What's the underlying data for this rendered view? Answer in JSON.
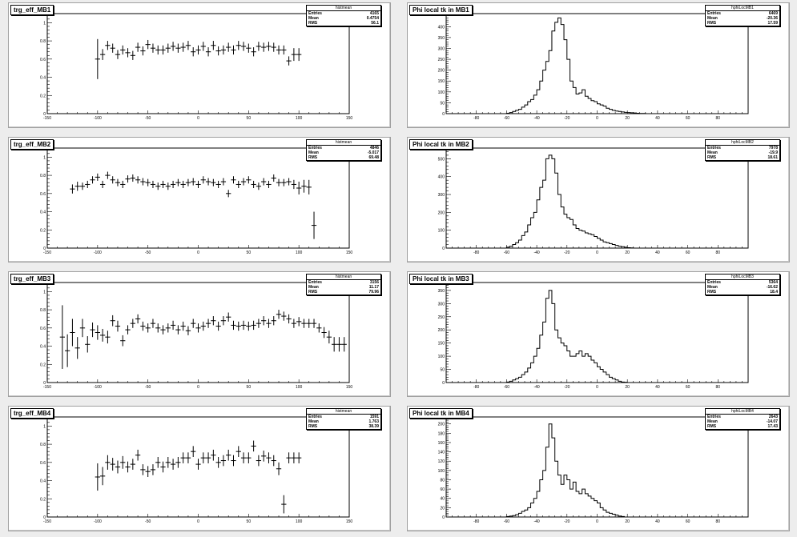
{
  "chart_data": [
    {
      "type": "scatter",
      "title": "trg_eff_MB1",
      "stats": {
        "name": "histmean",
        "entries": "4165",
        "mean": "0.4754",
        "rms": "56.1"
      },
      "xlim": [
        -150,
        150
      ],
      "ylim": [
        0,
        1.1
      ],
      "xticks": [
        -150,
        -100,
        -50,
        0,
        50,
        100,
        150
      ],
      "yticks": [
        0,
        0.2,
        0.4,
        0.6,
        0.8,
        1
      ],
      "xwidth": 5,
      "x": [
        -100,
        -95,
        -90,
        -85,
        -80,
        -75,
        -70,
        -65,
        -60,
        -55,
        -50,
        -45,
        -40,
        -35,
        -30,
        -25,
        -20,
        -15,
        -10,
        -5,
        0,
        5,
        10,
        15,
        20,
        25,
        30,
        35,
        40,
        45,
        50,
        55,
        60,
        65,
        70,
        75,
        80,
        85,
        90,
        95,
        100
      ],
      "y": [
        0.6,
        0.65,
        0.75,
        0.72,
        0.65,
        0.7,
        0.67,
        0.64,
        0.73,
        0.69,
        0.76,
        0.72,
        0.7,
        0.7,
        0.72,
        0.74,
        0.72,
        0.73,
        0.75,
        0.68,
        0.7,
        0.74,
        0.68,
        0.75,
        0.69,
        0.7,
        0.73,
        0.7,
        0.75,
        0.74,
        0.72,
        0.68,
        0.74,
        0.73,
        0.74,
        0.73,
        0.7,
        0.7,
        0.58,
        0.65,
        0.65
      ],
      "yerr": [
        0.22,
        0.06,
        0.05,
        0.05,
        0.05,
        0.05,
        0.05,
        0.05,
        0.05,
        0.05,
        0.05,
        0.05,
        0.05,
        0.05,
        0.05,
        0.05,
        0.05,
        0.05,
        0.05,
        0.05,
        0.05,
        0.05,
        0.05,
        0.05,
        0.05,
        0.05,
        0.05,
        0.05,
        0.05,
        0.05,
        0.05,
        0.05,
        0.05,
        0.05,
        0.05,
        0.05,
        0.05,
        0.05,
        0.05,
        0.07,
        0.07
      ]
    },
    {
      "type": "histogram",
      "title": "Phi local tk in MB1",
      "stats": {
        "name": "hphiLocMB1",
        "entries": "6469",
        "mean": "-20.36",
        "rms": "17.59"
      },
      "xlim": [
        -100,
        100
      ],
      "ylim": [
        0,
        460
      ],
      "xticks": [
        -80,
        -60,
        -40,
        -20,
        0,
        20,
        40,
        60,
        80
      ],
      "yticks": [
        0,
        50,
        100,
        150,
        200,
        250,
        300,
        350,
        400
      ],
      "bin_start": -60,
      "bin_width": 2,
      "values": [
        2,
        5,
        10,
        15,
        20,
        30,
        40,
        55,
        65,
        85,
        110,
        150,
        200,
        240,
        290,
        380,
        420,
        440,
        410,
        340,
        250,
        150,
        120,
        90,
        95,
        110,
        80,
        70,
        60,
        55,
        45,
        40,
        35,
        25,
        20,
        15,
        12,
        10,
        8,
        6,
        5,
        4,
        3,
        2,
        1,
        1,
        0,
        0,
        0,
        0
      ]
    },
    {
      "type": "scatter",
      "title": "trg_eff_MB2",
      "stats": {
        "name": "histmean",
        "entries": "4846",
        "mean": "-5.017",
        "rms": "69.48"
      },
      "xlim": [
        -150,
        150
      ],
      "ylim": [
        0,
        1.1
      ],
      "xticks": [
        -150,
        -100,
        -50,
        0,
        50,
        100,
        150
      ],
      "yticks": [
        0,
        0.2,
        0.4,
        0.6,
        0.8,
        1
      ],
      "xwidth": 5,
      "x": [
        -125,
        -120,
        -115,
        -110,
        -105,
        -100,
        -95,
        -90,
        -85,
        -80,
        -75,
        -70,
        -65,
        -60,
        -55,
        -50,
        -45,
        -40,
        -35,
        -30,
        -25,
        -20,
        -15,
        -10,
        -5,
        0,
        5,
        10,
        15,
        20,
        25,
        30,
        35,
        40,
        45,
        50,
        55,
        60,
        65,
        70,
        75,
        80,
        85,
        90,
        95,
        100,
        105,
        110,
        115
      ],
      "y": [
        0.65,
        0.68,
        0.68,
        0.7,
        0.75,
        0.78,
        0.7,
        0.8,
        0.75,
        0.72,
        0.7,
        0.76,
        0.77,
        0.75,
        0.73,
        0.72,
        0.7,
        0.68,
        0.7,
        0.68,
        0.7,
        0.72,
        0.7,
        0.72,
        0.73,
        0.7,
        0.75,
        0.73,
        0.72,
        0.7,
        0.73,
        0.6,
        0.75,
        0.7,
        0.73,
        0.75,
        0.7,
        0.68,
        0.73,
        0.7,
        0.77,
        0.72,
        0.72,
        0.73,
        0.7,
        0.66,
        0.68,
        0.67,
        0.25
      ],
      "yerr": [
        0.05,
        0.05,
        0.04,
        0.04,
        0.04,
        0.04,
        0.04,
        0.04,
        0.04,
        0.04,
        0.04,
        0.04,
        0.04,
        0.04,
        0.04,
        0.04,
        0.04,
        0.04,
        0.04,
        0.04,
        0.04,
        0.04,
        0.04,
        0.04,
        0.04,
        0.04,
        0.04,
        0.04,
        0.04,
        0.04,
        0.04,
        0.04,
        0.04,
        0.04,
        0.04,
        0.04,
        0.04,
        0.04,
        0.04,
        0.04,
        0.04,
        0.04,
        0.04,
        0.04,
        0.05,
        0.07,
        0.07,
        0.08,
        0.15
      ]
    },
    {
      "type": "histogram",
      "title": "Phi local tk in MB2",
      "stats": {
        "name": "hphiLocMB2",
        "entries": "7978",
        "mean": "-19.9",
        "rms": "18.61"
      },
      "xlim": [
        -100,
        100
      ],
      "ylim": [
        0,
        560
      ],
      "xticks": [
        -80,
        -60,
        -40,
        -20,
        0,
        20,
        40,
        60,
        80
      ],
      "yticks": [
        0,
        100,
        200,
        300,
        400,
        500
      ],
      "bin_start": -60,
      "bin_width": 2,
      "values": [
        5,
        10,
        20,
        30,
        45,
        70,
        90,
        130,
        170,
        200,
        270,
        340,
        380,
        500,
        520,
        500,
        420,
        300,
        230,
        190,
        170,
        160,
        130,
        110,
        100,
        95,
        85,
        80,
        75,
        65,
        55,
        45,
        35,
        30,
        25,
        20,
        15,
        10,
        8,
        5,
        2,
        1,
        0,
        0,
        0,
        0,
        0,
        0,
        0,
        0
      ]
    },
    {
      "type": "scatter",
      "title": "trg_eff_MB3",
      "stats": {
        "name": "histmean",
        "entries": "3156",
        "mean": "11.17",
        "rms": "79.96"
      },
      "xlim": [
        -150,
        150
      ],
      "ylim": [
        0,
        1.1
      ],
      "xticks": [
        -150,
        -100,
        -50,
        0,
        50,
        100,
        150
      ],
      "yticks": [
        0,
        0.2,
        0.4,
        0.6,
        0.8,
        1
      ],
      "xwidth": 5,
      "x": [
        -135,
        -130,
        -125,
        -120,
        -115,
        -110,
        -105,
        -100,
        -95,
        -90,
        -85,
        -80,
        -75,
        -70,
        -65,
        -60,
        -55,
        -50,
        -45,
        -40,
        -35,
        -30,
        -25,
        -20,
        -15,
        -10,
        -5,
        0,
        5,
        10,
        15,
        20,
        25,
        30,
        35,
        40,
        45,
        50,
        55,
        60,
        65,
        70,
        75,
        80,
        85,
        90,
        95,
        100,
        105,
        110,
        115,
        120,
        125,
        130,
        135,
        140,
        145
      ],
      "y": [
        0.5,
        0.35,
        0.55,
        0.38,
        0.6,
        0.42,
        0.58,
        0.55,
        0.52,
        0.5,
        0.68,
        0.62,
        0.46,
        0.58,
        0.65,
        0.7,
        0.62,
        0.6,
        0.65,
        0.6,
        0.58,
        0.6,
        0.63,
        0.58,
        0.62,
        0.57,
        0.65,
        0.6,
        0.62,
        0.65,
        0.68,
        0.62,
        0.68,
        0.72,
        0.63,
        0.62,
        0.63,
        0.62,
        0.63,
        0.65,
        0.68,
        0.65,
        0.68,
        0.75,
        0.73,
        0.7,
        0.65,
        0.67,
        0.65,
        0.65,
        0.65,
        0.6,
        0.55,
        0.5,
        0.42,
        0.42,
        0.42
      ],
      "yerr": [
        0.35,
        0.18,
        0.15,
        0.12,
        0.1,
        0.09,
        0.08,
        0.08,
        0.07,
        0.07,
        0.06,
        0.06,
        0.06,
        0.05,
        0.05,
        0.05,
        0.05,
        0.05,
        0.05,
        0.05,
        0.05,
        0.05,
        0.05,
        0.05,
        0.05,
        0.05,
        0.05,
        0.05,
        0.05,
        0.05,
        0.05,
        0.05,
        0.05,
        0.05,
        0.05,
        0.05,
        0.05,
        0.05,
        0.05,
        0.05,
        0.05,
        0.05,
        0.05,
        0.05,
        0.05,
        0.05,
        0.05,
        0.05,
        0.05,
        0.05,
        0.05,
        0.05,
        0.06,
        0.07,
        0.08,
        0.08,
        0.08
      ]
    },
    {
      "type": "histogram",
      "title": "Phi local tk in MB3",
      "stats": {
        "name": "hphiLocMB3",
        "entries": "5364",
        "mean": "-16.62",
        "rms": "18.4"
      },
      "xlim": [
        -100,
        100
      ],
      "ylim": [
        0,
        380
      ],
      "xticks": [
        -80,
        -60,
        -40,
        -20,
        0,
        20,
        40,
        60,
        80
      ],
      "yticks": [
        0,
        50,
        100,
        150,
        200,
        250,
        300,
        350
      ],
      "bin_start": -60,
      "bin_width": 2,
      "values": [
        2,
        5,
        10,
        15,
        20,
        30,
        40,
        55,
        75,
        100,
        130,
        180,
        230,
        320,
        350,
        300,
        200,
        170,
        150,
        140,
        120,
        100,
        100,
        110,
        120,
        100,
        110,
        100,
        85,
        75,
        60,
        50,
        40,
        30,
        20,
        15,
        10,
        5,
        2,
        1,
        0,
        0,
        0,
        0,
        0,
        0,
        0,
        0,
        0,
        0
      ]
    },
    {
      "type": "scatter",
      "title": "trg_eff_MB4",
      "stats": {
        "name": "histmean",
        "entries": "1591",
        "mean": "1.763",
        "rms": "38.39"
      },
      "xlim": [
        -150,
        150
      ],
      "ylim": [
        0,
        1.1
      ],
      "xticks": [
        -150,
        -100,
        -50,
        0,
        50,
        100,
        150
      ],
      "yticks": [
        0,
        0.2,
        0.4,
        0.6,
        0.8,
        1
      ],
      "xwidth": 5,
      "x": [
        -100,
        -95,
        -90,
        -85,
        -80,
        -75,
        -70,
        -65,
        -60,
        -55,
        -50,
        -45,
        -40,
        -35,
        -30,
        -25,
        -20,
        -15,
        -10,
        -5,
        0,
        5,
        10,
        15,
        20,
        25,
        30,
        35,
        40,
        45,
        50,
        55,
        60,
        65,
        70,
        75,
        80,
        85,
        90,
        95,
        100
      ],
      "y": [
        0.44,
        0.45,
        0.6,
        0.58,
        0.55,
        0.6,
        0.55,
        0.58,
        0.68,
        0.52,
        0.5,
        0.52,
        0.6,
        0.55,
        0.6,
        0.58,
        0.6,
        0.65,
        0.65,
        0.72,
        0.58,
        0.65,
        0.65,
        0.68,
        0.6,
        0.62,
        0.68,
        0.62,
        0.72,
        0.65,
        0.65,
        0.78,
        0.62,
        0.67,
        0.65,
        0.62,
        0.53,
        0.14,
        0.65,
        0.65,
        0.65
      ],
      "yerr": [
        0.15,
        0.1,
        0.08,
        0.07,
        0.07,
        0.07,
        0.06,
        0.06,
        0.06,
        0.06,
        0.06,
        0.06,
        0.06,
        0.06,
        0.06,
        0.06,
        0.06,
        0.06,
        0.06,
        0.06,
        0.06,
        0.06,
        0.06,
        0.06,
        0.06,
        0.06,
        0.06,
        0.06,
        0.06,
        0.06,
        0.06,
        0.06,
        0.06,
        0.06,
        0.06,
        0.06,
        0.07,
        0.1,
        0.06,
        0.06,
        0.06
      ]
    },
    {
      "type": "histogram",
      "title": "Phi local tk in MB4",
      "stats": {
        "name": "hphiLocMB4",
        "entries": "2643",
        "mean": "-14.07",
        "rms": "17.43"
      },
      "xlim": [
        -100,
        100
      ],
      "ylim": [
        0,
        215
      ],
      "xticks": [
        -80,
        -60,
        -40,
        -20,
        0,
        20,
        40,
        60,
        80
      ],
      "yticks": [
        0,
        20,
        40,
        60,
        80,
        100,
        120,
        140,
        160,
        180,
        200
      ],
      "bin_start": -60,
      "bin_width": 2,
      "values": [
        1,
        2,
        3,
        5,
        8,
        12,
        15,
        20,
        30,
        40,
        55,
        80,
        100,
        150,
        200,
        170,
        120,
        90,
        70,
        90,
        80,
        60,
        75,
        55,
        50,
        60,
        50,
        45,
        40,
        35,
        30,
        20,
        15,
        10,
        8,
        6,
        4,
        2,
        1,
        0,
        0,
        0,
        0,
        0,
        0,
        0,
        0,
        0,
        0,
        0
      ]
    }
  ]
}
